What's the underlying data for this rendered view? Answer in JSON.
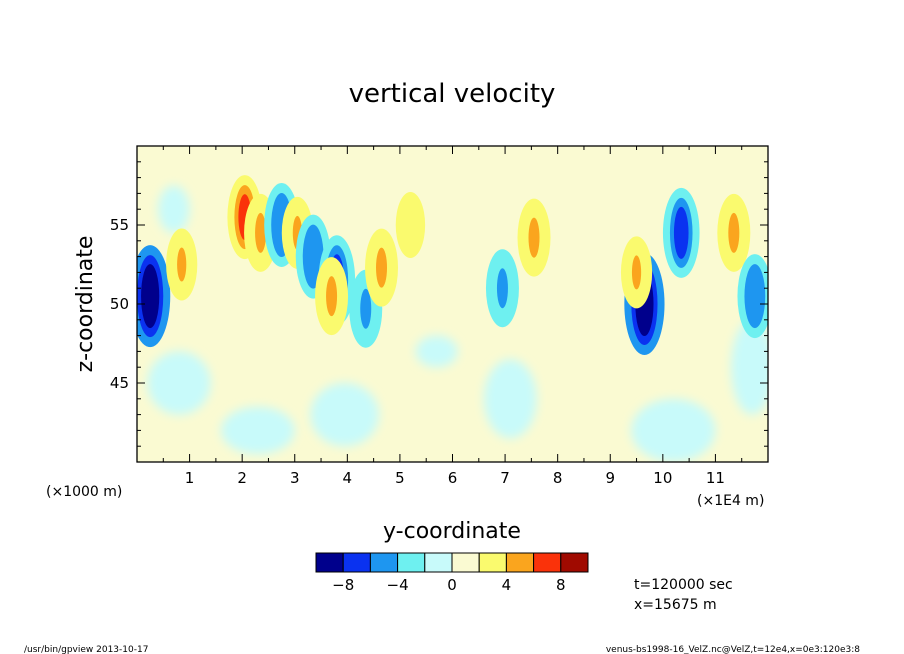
{
  "chart_data": {
    "type": "heatmap",
    "title": "vertical velocity",
    "xlabel": "y-coordinate",
    "ylabel": "z-coordinate",
    "x_unit_note": "(×1E4 m)",
    "y_unit_note": "(×1000 m)",
    "xlim": [
      0,
      12
    ],
    "ylim": [
      40,
      60
    ],
    "x_ticks": [
      "1",
      "2",
      "3",
      "4",
      "5",
      "6",
      "7",
      "8",
      "9",
      "10",
      "11"
    ],
    "y_ticks": [
      "45",
      "50",
      "55"
    ],
    "colorbar": {
      "levels": [
        -10,
        -8,
        -6,
        -4,
        -2,
        0,
        2,
        4,
        6,
        8,
        10
      ],
      "labels": [
        "−8",
        "−4",
        "0",
        "4",
        "8"
      ],
      "colors": [
        "#00008c",
        "#0a32f0",
        "#1e96f0",
        "#6ef0f0",
        "#c8fafa",
        "#fafad2",
        "#fafa6e",
        "#faa51e",
        "#fa320a",
        "#a00a00"
      ]
    },
    "background_level_color": "#fafad2",
    "features": [
      {
        "y": 0.25,
        "z": 50.5,
        "value": -9
      },
      {
        "y": 0.85,
        "z": 52.5,
        "value": 4
      },
      {
        "y": 2.05,
        "z": 55.5,
        "value": 6
      },
      {
        "y": 2.35,
        "z": 54.5,
        "value": 5
      },
      {
        "y": 2.75,
        "z": 55.0,
        "value": -6
      },
      {
        "y": 3.05,
        "z": 54.5,
        "value": 4
      },
      {
        "y": 3.35,
        "z": 53.0,
        "value": -6
      },
      {
        "y": 3.8,
        "z": 51.5,
        "value": -7
      },
      {
        "y": 3.7,
        "z": 50.5,
        "value": 5
      },
      {
        "y": 4.35,
        "z": 49.7,
        "value": -5
      },
      {
        "y": 4.65,
        "z": 52.3,
        "value": 5
      },
      {
        "y": 6.95,
        "z": 51.0,
        "value": -5
      },
      {
        "y": 7.55,
        "z": 54.2,
        "value": 5
      },
      {
        "y": 9.65,
        "z": 50.0,
        "value": -9
      },
      {
        "y": 10.35,
        "z": 54.5,
        "value": -7
      },
      {
        "y": 11.35,
        "z": 54.5,
        "value": 5
      },
      {
        "y": 11.75,
        "z": 50.5,
        "value": -6
      },
      {
        "y": 9.5,
        "z": 52.0,
        "value": 4
      },
      {
        "y": 5.2,
        "z": 55.0,
        "value": 3
      }
    ],
    "annotations": {
      "time": "t=120000 sec",
      "x_position": "x=15675 m"
    }
  },
  "footer": {
    "left": "/usr/bin/gpview   2013-10-17",
    "right": "venus-bs1998-16_VelZ.nc@VelZ,t=12e4,x=0e3:120e3:8"
  }
}
